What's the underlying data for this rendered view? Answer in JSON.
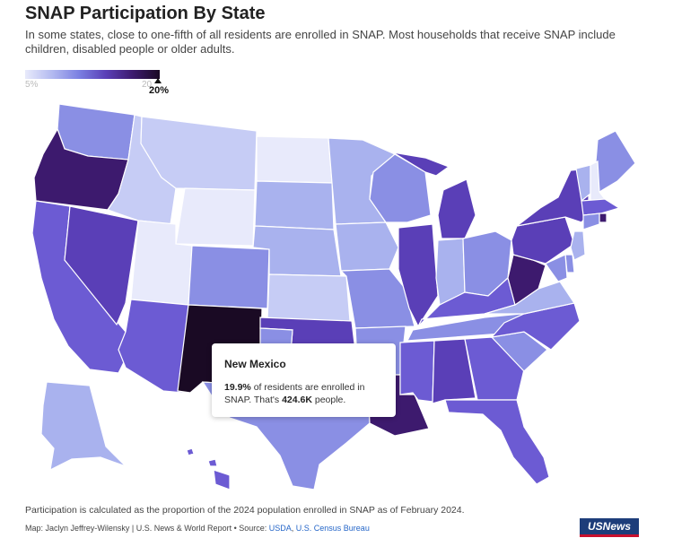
{
  "title": "SNAP Participation By State",
  "subtitle": "In some states, close to one-fifth of all residents are enrolled in SNAP. Most households that receive SNAP include children, disabled people or older adults.",
  "legend": {
    "min_label": "5%",
    "max_label": "20",
    "marker_label": "20%",
    "marker_value": 20
  },
  "colors": {
    "lightest": "#e8eafb",
    "light": "#c6ccf5",
    "medium_light": "#a9b2ee",
    "medium": "#8a8fe4",
    "medium_dark": "#6c5bd3",
    "dark": "#5a3fb7",
    "darker": "#3d1a6e",
    "darkest": "#1a0a24"
  },
  "tooltip": {
    "state": "New Mexico",
    "rate": "19.9%",
    "text_1": " of residents are enrolled in SNAP. That's ",
    "people": "424.6K",
    "text_2": " people."
  },
  "footnote": "Participation is calculated as the proportion of the 2024 population enrolled in SNAP as of February 2024.",
  "credit": {
    "prefix": "Map: Jaclyn Jeffrey-Wilensky | U.S. News & World Report • Source: ",
    "link1": "USDA",
    "sep": ", ",
    "link2": "U.S. Census Bureau"
  },
  "logo": "USNews",
  "states": [
    {
      "abbr": "WA",
      "shade": "medium"
    },
    {
      "abbr": "OR",
      "shade": "darker"
    },
    {
      "abbr": "CA",
      "shade": "medium_dark"
    },
    {
      "abbr": "NV",
      "shade": "dark"
    },
    {
      "abbr": "ID",
      "shade": "light"
    },
    {
      "abbr": "MT",
      "shade": "light"
    },
    {
      "abbr": "WY",
      "shade": "lightest"
    },
    {
      "abbr": "UT",
      "shade": "lightest"
    },
    {
      "abbr": "AZ",
      "shade": "medium_dark"
    },
    {
      "abbr": "CO",
      "shade": "medium"
    },
    {
      "abbr": "NM",
      "shade": "darkest"
    },
    {
      "abbr": "ND",
      "shade": "lightest"
    },
    {
      "abbr": "SD",
      "shade": "medium_light"
    },
    {
      "abbr": "NE",
      "shade": "medium_light"
    },
    {
      "abbr": "KS",
      "shade": "light"
    },
    {
      "abbr": "OK",
      "shade": "dark"
    },
    {
      "abbr": "TX",
      "shade": "medium"
    },
    {
      "abbr": "MN",
      "shade": "medium_light"
    },
    {
      "abbr": "IA",
      "shade": "medium_light"
    },
    {
      "abbr": "MO",
      "shade": "medium"
    },
    {
      "abbr": "AR",
      "shade": "medium"
    },
    {
      "abbr": "LA",
      "shade": "darker"
    },
    {
      "abbr": "WI",
      "shade": "medium"
    },
    {
      "abbr": "IL",
      "shade": "dark"
    },
    {
      "abbr": "MI",
      "shade": "dark"
    },
    {
      "abbr": "IN",
      "shade": "medium_light"
    },
    {
      "abbr": "OH",
      "shade": "medium"
    },
    {
      "abbr": "KY",
      "shade": "medium_dark"
    },
    {
      "abbr": "TN",
      "shade": "medium"
    },
    {
      "abbr": "MS",
      "shade": "medium_dark"
    },
    {
      "abbr": "AL",
      "shade": "dark"
    },
    {
      "abbr": "GA",
      "shade": "medium_dark"
    },
    {
      "abbr": "FL",
      "shade": "medium_dark"
    },
    {
      "abbr": "SC",
      "shade": "medium"
    },
    {
      "abbr": "NC",
      "shade": "medium_dark"
    },
    {
      "abbr": "VA",
      "shade": "medium_light"
    },
    {
      "abbr": "WV",
      "shade": "darker"
    },
    {
      "abbr": "PA",
      "shade": "dark"
    },
    {
      "abbr": "NY",
      "shade": "dark"
    },
    {
      "abbr": "ME",
      "shade": "medium"
    },
    {
      "abbr": "VT",
      "shade": "medium_light"
    },
    {
      "abbr": "NH",
      "shade": "lightest"
    },
    {
      "abbr": "MA",
      "shade": "medium_dark"
    },
    {
      "abbr": "RI",
      "shade": "darker"
    },
    {
      "abbr": "CT",
      "shade": "medium"
    },
    {
      "abbr": "NJ",
      "shade": "medium_light"
    },
    {
      "abbr": "DE",
      "shade": "medium"
    },
    {
      "abbr": "MD",
      "shade": "medium"
    },
    {
      "abbr": "AK",
      "shade": "medium_light"
    },
    {
      "abbr": "HI",
      "shade": "medium_dark"
    }
  ]
}
